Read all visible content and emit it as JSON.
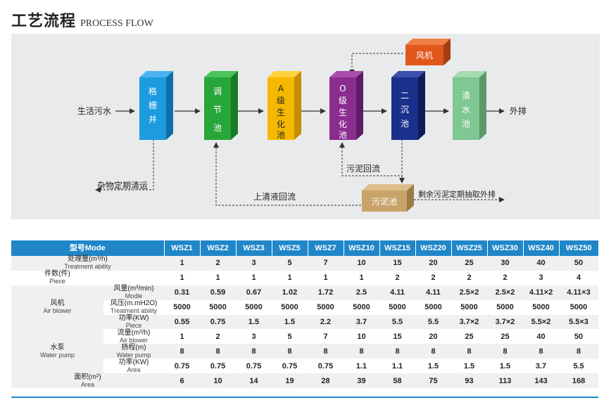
{
  "title": {
    "cn": "工艺流程",
    "en": "PROCESS FLOW"
  },
  "flow": {
    "input_label": "生活污水",
    "output_label": "外排",
    "boxes": [
      {
        "id": "grid",
        "label": "格栅井",
        "color": "#1c9be0",
        "side": "#0f6fa8",
        "top": "#4bb4ee"
      },
      {
        "id": "regulate",
        "label": "调节池",
        "color": "#27a63a",
        "side": "#1a7a28",
        "top": "#4cc25c"
      },
      {
        "id": "a-stage",
        "label": "A级生化池",
        "color": "#f5b800",
        "side": "#c38f00",
        "top": "#ffd23d"
      },
      {
        "id": "o-stage",
        "label": "O级生化池",
        "color": "#8a2d8f",
        "side": "#5e1c63",
        "top": "#a94ead"
      },
      {
        "id": "settle",
        "label": "二沉池",
        "color": "#1b2f8c",
        "side": "#101c5a",
        "top": "#3a4fae"
      },
      {
        "id": "clear",
        "label": "清水池",
        "color": "#7fc793",
        "side": "#5a9a6b",
        "top": "#a4dbb2"
      }
    ],
    "blower": {
      "label": "风机",
      "color": "#e2571c",
      "side": "#a63c10",
      "top": "#f07d45"
    },
    "sludge": {
      "label": "污泥池",
      "color": "#c9a46a",
      "side": "#9a7a45",
      "top": "#dcbd8a"
    },
    "notes": {
      "debris": "杂物定期清运",
      "sludge_return": "污泥回流",
      "supernatant": "上清液回流",
      "excess_sludge": "剩余污泥定期抽取外排"
    }
  },
  "table": {
    "header_label": "型号Mode",
    "models": [
      "WSZ1",
      "WSZ2",
      "WSZ3",
      "WSZ5",
      "WSZ7",
      "WSZ10",
      "WSZ15",
      "WSZ20",
      "WSZ25",
      "WSZ30",
      "WSZ40",
      "WSZ50"
    ],
    "rows": {
      "capacity": {
        "cn": "处理量(m³/h)",
        "en": "Treatment ability",
        "values": [
          "1",
          "2",
          "3",
          "5",
          "7",
          "10",
          "15",
          "20",
          "25",
          "30",
          "40",
          "50"
        ]
      },
      "pieces": {
        "cn": "件数(件)",
        "en": "Piece",
        "values": [
          "1",
          "1",
          "1",
          "1",
          "1",
          "1",
          "2",
          "2",
          "2",
          "2",
          "3",
          "4"
        ]
      },
      "blower_group": {
        "cn": "风机",
        "en": "Air blower"
      },
      "blower_air": {
        "cn": "风量(m³/min)",
        "en": "Modle",
        "values": [
          "0.31",
          "0.59",
          "0.67",
          "1.02",
          "1.72",
          "2.5",
          "4.11",
          "4.11",
          "2.5×2",
          "2.5×2",
          "4.11×2",
          "4.11×3"
        ]
      },
      "blower_pressure": {
        "cn": "风压(m.mH2O)",
        "en": "Treatment ability",
        "values": [
          "5000",
          "5000",
          "5000",
          "5000",
          "5000",
          "5000",
          "5000",
          "5000",
          "5000",
          "5000",
          "5000",
          "5000"
        ]
      },
      "blower_power": {
        "cn": "功率(KW)",
        "en": "Piece",
        "values": [
          "0.55",
          "0.75",
          "1.5",
          "1.5",
          "2.2",
          "3.7",
          "5.5",
          "5.5",
          "3.7×2",
          "3.7×2",
          "5.5×2",
          "5.5×3"
        ]
      },
      "pump_group": {
        "cn": "水泵",
        "en": "Water pump"
      },
      "pump_flow": {
        "cn": "流量(m³/h)",
        "en": "Air blower",
        "values": [
          "1",
          "2",
          "3",
          "5",
          "7",
          "10",
          "15",
          "20",
          "25",
          "25",
          "40",
          "50"
        ]
      },
      "pump_head": {
        "cn": "扬程(m)",
        "en": "Water pump",
        "values": [
          "8",
          "8",
          "8",
          "8",
          "8",
          "8",
          "8",
          "8",
          "8",
          "8",
          "8",
          "8"
        ]
      },
      "pump_power": {
        "cn": "功率(KW)",
        "en": "Area",
        "values": [
          "0.75",
          "0.75",
          "0.75",
          "0.75",
          "0.75",
          "1.1",
          "1.1",
          "1.5",
          "1.5",
          "1.5",
          "3.7",
          "5.5"
        ]
      },
      "area": {
        "cn": "面积(m²)",
        "en": "Area",
        "values": [
          "6",
          "10",
          "14",
          "19",
          "28",
          "39",
          "58",
          "75",
          "93",
          "113",
          "143",
          "168"
        ]
      }
    }
  }
}
